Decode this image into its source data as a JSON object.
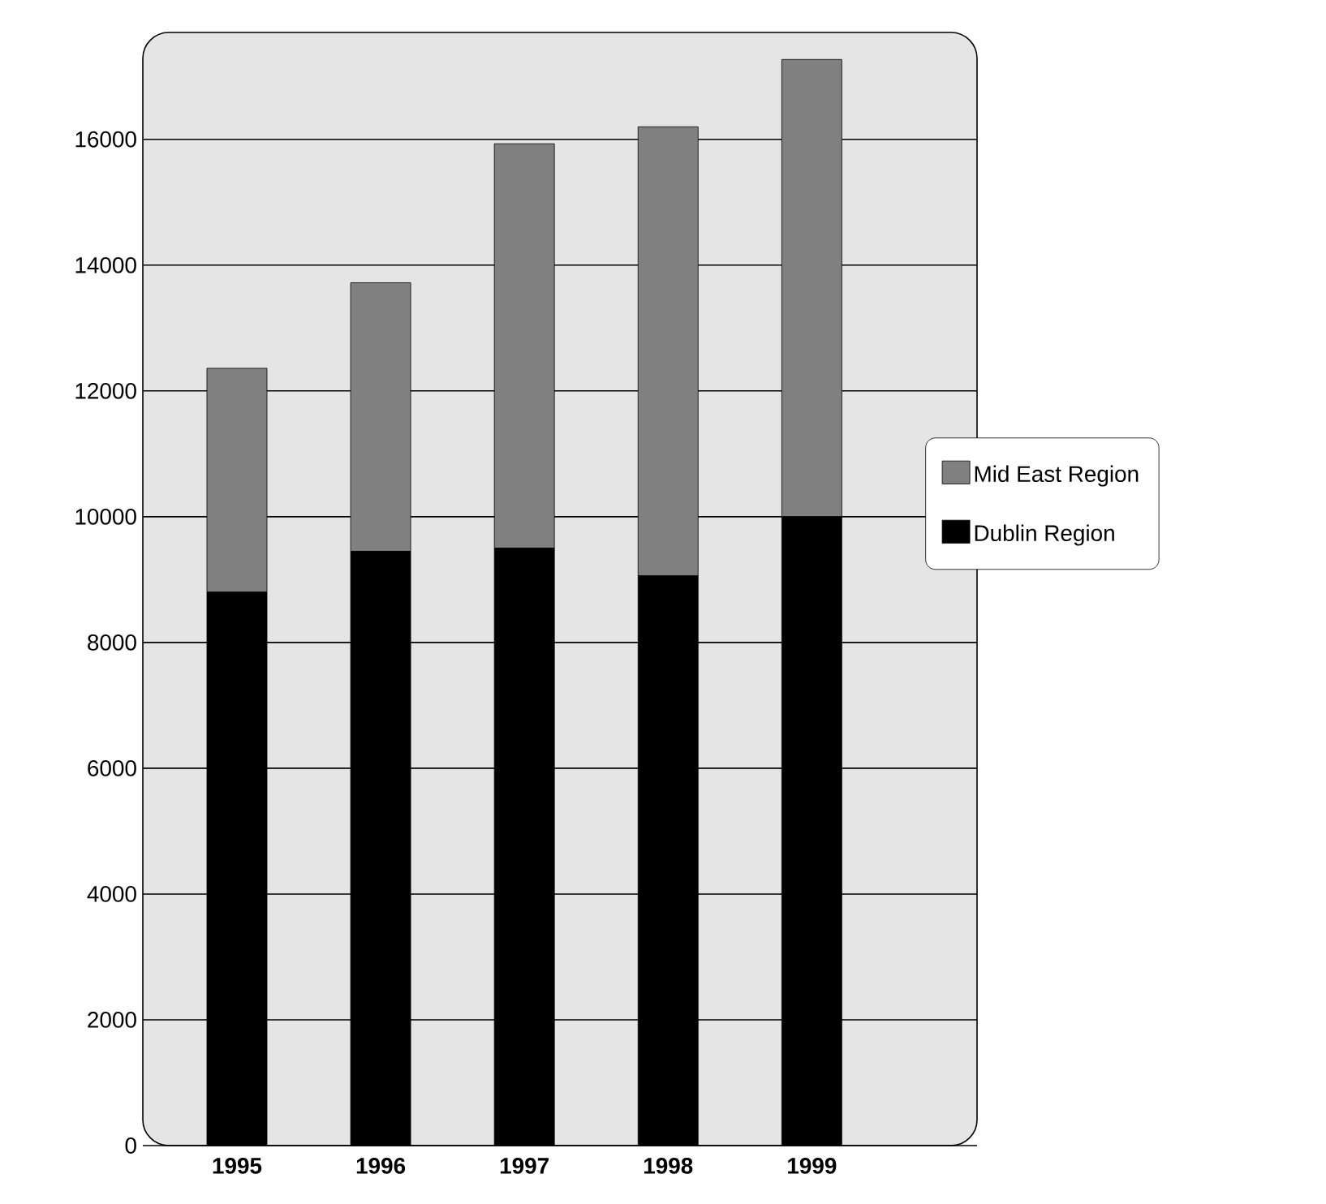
{
  "chart_data": {
    "type": "bar",
    "stacked": true,
    "categories": [
      "1995",
      "1996",
      "1997",
      "1998",
      "1999"
    ],
    "series": [
      {
        "name": "Dublin Region",
        "color": "#000000",
        "values": [
          8800,
          9450,
          9500,
          9060,
          10000
        ]
      },
      {
        "name": "Mid East Region",
        "color": "#808080",
        "values": [
          3560,
          4270,
          6430,
          7140,
          7270
        ]
      }
    ],
    "ylim": [
      0,
      17700
    ],
    "yticks": [
      0,
      2000,
      4000,
      6000,
      8000,
      10000,
      12000,
      14000,
      16000
    ],
    "grid": "y",
    "legend": "right"
  }
}
